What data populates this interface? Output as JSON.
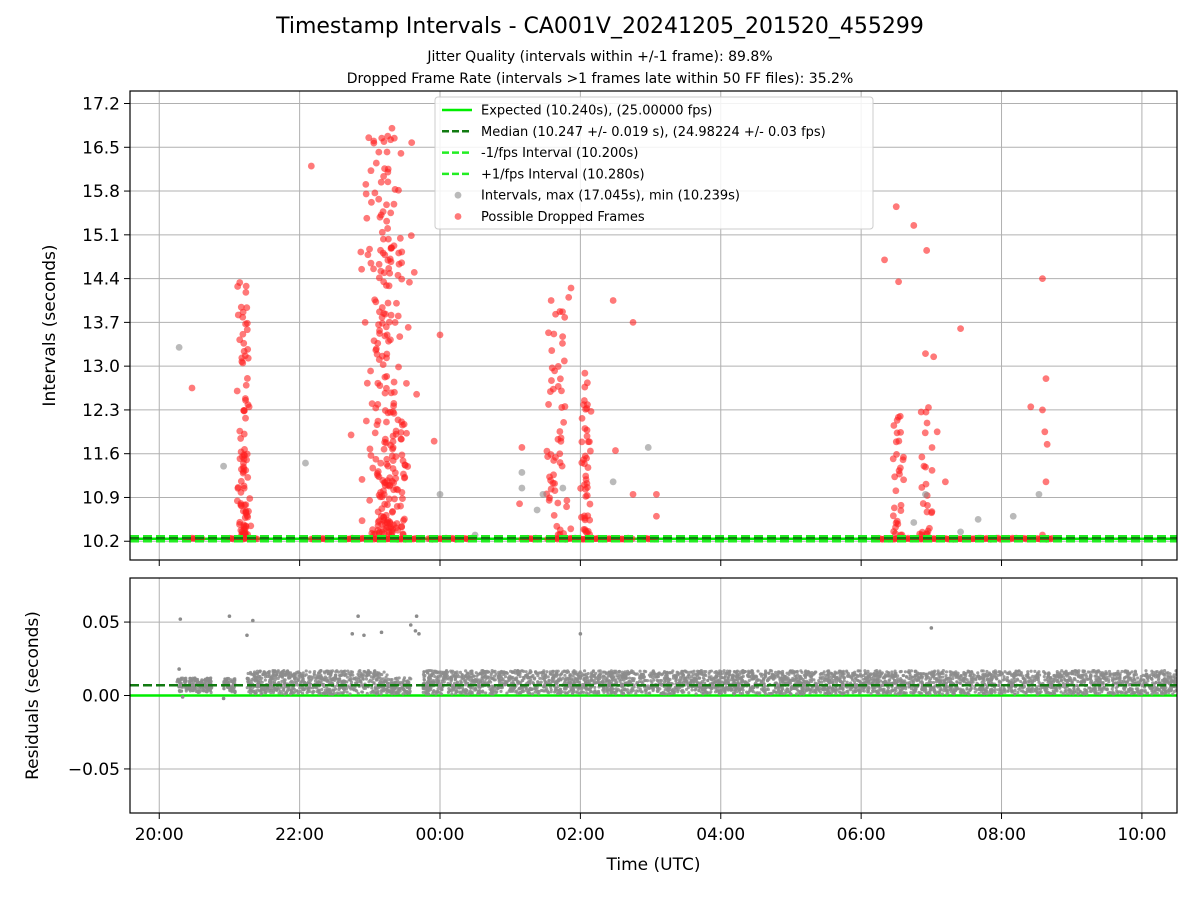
{
  "title": "Timestamp Intervals - CA001V_20241205_201520_455299",
  "subtitle_lines": [
    "Jitter Quality (intervals within +/-1 frame): 89.8%",
    "Dropped Frame Rate (intervals >1 frames late within 50 FF files): 35.2%"
  ],
  "colors": {
    "expected": "#00ee00",
    "median": "#117a11",
    "fps_band": "#22ee22",
    "intervals": "#8c8c8c",
    "dropped": "#ff2020",
    "grid": "#b0b0b0"
  },
  "chart_data": [
    {
      "type": "scatter",
      "ylabel": "Intervals (seconds)",
      "xlabel": "",
      "x_unit": "hours since 20:00 UTC on the x axis",
      "xlim_labels": [
        "19:35",
        "10:30"
      ],
      "ylim": [
        9.9,
        17.4
      ],
      "yticks": [
        10.2,
        10.9,
        11.6,
        12.3,
        13.0,
        13.7,
        14.4,
        15.1,
        15.8,
        16.5,
        17.2
      ],
      "ytick_labels": [
        "10.2",
        "10.9",
        "11.6",
        "12.3",
        "13.0",
        "13.7",
        "14.4",
        "15.1",
        "15.8",
        "16.5",
        "17.2"
      ],
      "grid": true,
      "legend_position": "top-center",
      "legend": [
        {
          "label": "Expected (10.240s), (25.00000 fps)",
          "style": "solid-line",
          "color": "#00ee00"
        },
        {
          "label": "Median (10.247 +/- 0.019 s), (24.98224 +/- 0.03 fps)",
          "style": "dashed-line",
          "color": "#117a11"
        },
        {
          "label": "-1/fps Interval (10.200s)",
          "style": "dashed-line",
          "color": "#22ee22"
        },
        {
          "label": "+1/fps Interval (10.280s)",
          "style": "dashed-line",
          "color": "#22ee22"
        },
        {
          "label": "Intervals, max (17.045s), min (10.239s)",
          "style": "marker",
          "color": "#8c8c8c"
        },
        {
          "label": "Possible Dropped Frames",
          "style": "marker",
          "color": "#ff2020"
        }
      ],
      "reference_lines": {
        "expected": 10.24,
        "median": 10.247,
        "minus_1fps": 10.2,
        "plus_1fps": 10.28
      },
      "baseline_runs": [
        [
          "20:23",
          "20:38"
        ],
        [
          "21:00",
          "21:25"
        ],
        [
          "22:10",
          "22:25"
        ],
        [
          "22:40",
          "23:45"
        ],
        [
          "23:50",
          "00:30"
        ],
        [
          "01:10",
          "01:25"
        ],
        [
          "01:32",
          "02:45"
        ],
        [
          "02:55",
          "03:05"
        ],
        [
          "06:15",
          "08:25"
        ],
        [
          "08:30",
          "08:45"
        ]
      ],
      "dropped_clusters": [
        {
          "center": "21:12",
          "spread_minutes": 7,
          "count": 95,
          "ymin": 10.3,
          "ymax": 14.4
        },
        {
          "center": "23:15",
          "spread_minutes": 25,
          "count": 260,
          "ymin": 10.3,
          "ymax": 17.0
        },
        {
          "center": "01:40",
          "spread_minutes": 14,
          "count": 55,
          "ymin": 10.3,
          "ymax": 14.2
        },
        {
          "center": "02:05",
          "spread_minutes": 6,
          "count": 45,
          "ymin": 10.3,
          "ymax": 12.9
        },
        {
          "center": "06:32",
          "spread_minutes": 8,
          "count": 30,
          "ymin": 10.3,
          "ymax": 12.2
        },
        {
          "center": "06:55",
          "spread_minutes": 10,
          "count": 25,
          "ymin": 10.3,
          "ymax": 12.5
        }
      ],
      "dropped_points": [
        {
          "x": "20:28",
          "y": 12.65
        },
        {
          "x": "22:10",
          "y": 16.2
        },
        {
          "x": "22:44",
          "y": 11.9
        },
        {
          "x": "22:53",
          "y": 14.55
        },
        {
          "x": "22:56",
          "y": 13.7
        },
        {
          "x": "23:38",
          "y": 14.5
        },
        {
          "x": "23:40",
          "y": 12.55
        },
        {
          "x": "00:00",
          "y": 13.5
        },
        {
          "x": "23:55",
          "y": 11.8
        },
        {
          "x": "01:10",
          "y": 11.7
        },
        {
          "x": "01:08",
          "y": 10.8
        },
        {
          "x": "01:35",
          "y": 14.05
        },
        {
          "x": "01:52",
          "y": 14.25
        },
        {
          "x": "01:50",
          "y": 14.1
        },
        {
          "x": "02:28",
          "y": 14.05
        },
        {
          "x": "02:45",
          "y": 13.7
        },
        {
          "x": "02:30",
          "y": 11.65
        },
        {
          "x": "02:45",
          "y": 10.95
        },
        {
          "x": "03:05",
          "y": 10.95
        },
        {
          "x": "03:05",
          "y": 10.6
        },
        {
          "x": "06:20",
          "y": 14.7
        },
        {
          "x": "06:30",
          "y": 15.55
        },
        {
          "x": "06:32",
          "y": 14.35
        },
        {
          "x": "06:45",
          "y": 15.25
        },
        {
          "x": "06:56",
          "y": 14.85
        },
        {
          "x": "06:55",
          "y": 13.2
        },
        {
          "x": "07:02",
          "y": 13.15
        },
        {
          "x": "07:12",
          "y": 11.15
        },
        {
          "x": "07:05",
          "y": 11.95
        },
        {
          "x": "07:25",
          "y": 13.6
        },
        {
          "x": "08:35",
          "y": 14.4
        },
        {
          "x": "08:38",
          "y": 12.8
        },
        {
          "x": "08:25",
          "y": 12.35
        },
        {
          "x": "08:35",
          "y": 12.3
        },
        {
          "x": "08:37",
          "y": 11.95
        },
        {
          "x": "08:39",
          "y": 11.75
        },
        {
          "x": "08:38",
          "y": 11.15
        },
        {
          "x": "08:35",
          "y": 10.3
        }
      ],
      "interval_points": [
        {
          "x": "20:17",
          "y": 13.3
        },
        {
          "x": "20:55",
          "y": 11.4
        },
        {
          "x": "22:05",
          "y": 11.45
        },
        {
          "x": "00:00",
          "y": 10.95
        },
        {
          "x": "01:10",
          "y": 11.3
        },
        {
          "x": "01:10",
          "y": 11.05
        },
        {
          "x": "01:23",
          "y": 10.7
        },
        {
          "x": "01:28",
          "y": 10.95
        },
        {
          "x": "01:45",
          "y": 11.05
        },
        {
          "x": "02:28",
          "y": 11.15
        },
        {
          "x": "02:58",
          "y": 11.7
        },
        {
          "x": "00:30",
          "y": 10.3
        },
        {
          "x": "06:55",
          "y": 10.95
        },
        {
          "x": "07:25",
          "y": 10.35
        },
        {
          "x": "07:40",
          "y": 10.55
        },
        {
          "x": "08:10",
          "y": 10.6
        },
        {
          "x": "08:32",
          "y": 10.95
        },
        {
          "x": "06:45",
          "y": 10.5
        }
      ]
    },
    {
      "type": "scatter",
      "ylabel": "Residuals (seconds)",
      "xlabel": "Time (UTC)",
      "ylim": [
        -0.08,
        0.08
      ],
      "yticks": [
        -0.05,
        0.0,
        0.05
      ],
      "ytick_labels": [
        "−0.05",
        "0.00",
        "0.05"
      ],
      "xticks": [
        "20:00",
        "22:00",
        "00:00",
        "02:00",
        "04:00",
        "06:00",
        "08:00",
        "10:00"
      ],
      "grid": true,
      "reference_lines": {
        "expected": 0.0,
        "median": 0.007
      },
      "bands": [
        {
          "from": "20:15",
          "to": "20:45",
          "ymin": 0.002,
          "ymax": 0.012
        },
        {
          "from": "20:55",
          "to": "21:05",
          "ymin": 0.002,
          "ymax": 0.012
        },
        {
          "from": "21:15",
          "to": "23:15",
          "ymin": 0.001,
          "ymax": 0.017
        },
        {
          "from": "23:15",
          "to": "23:35",
          "ymin": 0.001,
          "ymax": 0.012
        },
        {
          "from": "23:45",
          "to": "02:15",
          "ymin": 0.001,
          "ymax": 0.017
        },
        {
          "from": "02:15",
          "to": "10:30",
          "ymin": 0.001,
          "ymax": 0.017
        }
      ],
      "outliers": [
        {
          "x": "20:18",
          "y": 0.052
        },
        {
          "x": "21:00",
          "y": 0.054
        },
        {
          "x": "21:20",
          "y": 0.051
        },
        {
          "x": "21:15",
          "y": 0.041
        },
        {
          "x": "22:45",
          "y": 0.042
        },
        {
          "x": "22:50",
          "y": 0.054
        },
        {
          "x": "22:55",
          "y": 0.041
        },
        {
          "x": "23:10",
          "y": 0.043
        },
        {
          "x": "23:40",
          "y": 0.054
        },
        {
          "x": "23:39",
          "y": 0.044
        },
        {
          "x": "23:42",
          "y": 0.042
        },
        {
          "x": "23:35",
          "y": 0.048
        },
        {
          "x": "02:00",
          "y": 0.042
        },
        {
          "x": "07:00",
          "y": 0.046
        },
        {
          "x": "20:17",
          "y": 0.018
        },
        {
          "x": "20:20",
          "y": -0.001
        },
        {
          "x": "20:55",
          "y": -0.002
        }
      ]
    }
  ]
}
